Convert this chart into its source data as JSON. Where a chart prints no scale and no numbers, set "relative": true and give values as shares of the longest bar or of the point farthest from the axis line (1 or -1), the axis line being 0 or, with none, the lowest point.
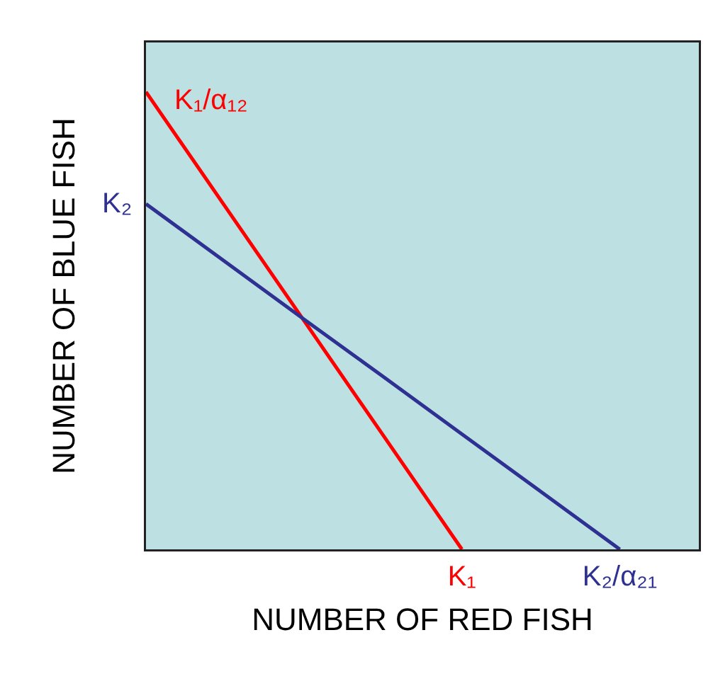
{
  "chart_data": {
    "type": "line",
    "relative": true,
    "xlabel": "NUMBER OF RED FISH",
    "ylabel": "NUMBER OF BLUE FISH",
    "categories": [
      null,
      null,
      null,
      null,
      "K₁",
      null,
      "K₂/α₂₁",
      null
    ],
    "series": [
      {
        "color": "#ff0000",
        "values": [
          1,
          0.75,
          0.5,
          0.25,
          0,
          null,
          null,
          null
        ]
      },
      {
        "color": "#2e3192",
        "values": [
          0.755,
          0.629,
          0.503,
          0.378,
          0.252,
          0.126,
          0,
          null
        ]
      }
    ],
    "annotations": [
      "K₁/α₁₂",
      "K₂"
    ],
    "grid": false,
    "marker": "none",
    "line_style": "solid"
  }
}
